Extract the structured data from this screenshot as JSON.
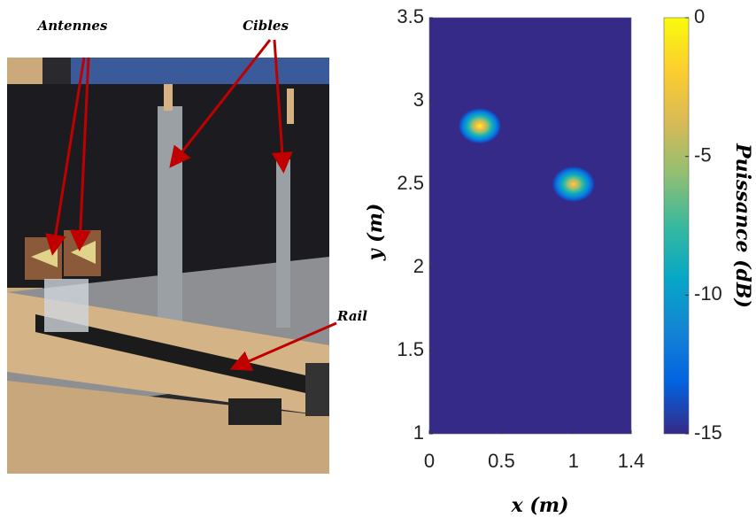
{
  "photo": {
    "labels": [
      "Antennes",
      "Cibles",
      "Rail"
    ]
  },
  "chart_data": {
    "type": "heatmap",
    "x": [
      0.35,
      1.0
    ],
    "y": [
      2.85,
      2.5
    ],
    "values": [
      0,
      -1
    ],
    "xlim": [
      0,
      1.4
    ],
    "xticks": [
      0,
      0.5,
      1,
      1.4
    ],
    "ylim": [
      1,
      3.5
    ],
    "yticks": [
      1,
      1.5,
      2,
      2.5,
      3,
      3.5
    ],
    "clim": [
      -15,
      0
    ],
    "cticks": [
      0,
      -5,
      -10,
      -15
    ],
    "colormap": [
      "#352a87",
      "#0363e1",
      "#1485d4",
      "#06a7c6",
      "#38b99e",
      "#92bf73",
      "#d9ba56",
      "#fcce2e",
      "#f9fb0e"
    ],
    "xlabel": "x (m)",
    "ylabel": "y (m)",
    "clabel": "Puissance (dB)"
  }
}
